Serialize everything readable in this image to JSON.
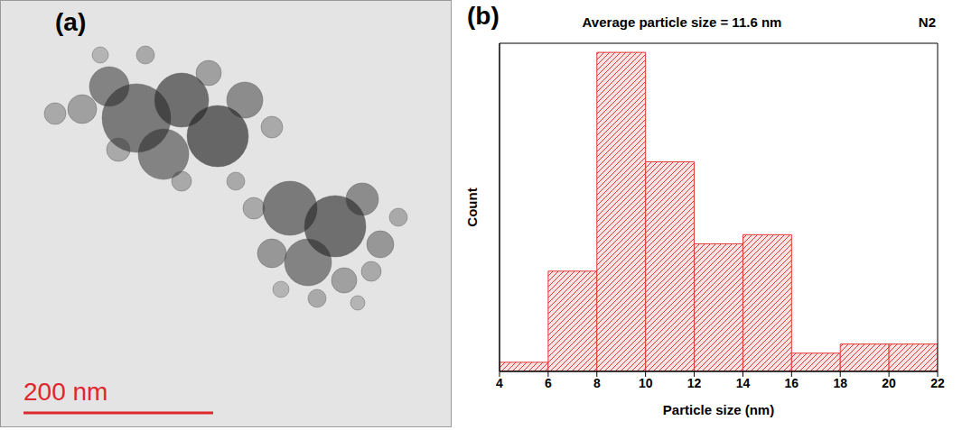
{
  "panel_a": {
    "label": "(a)",
    "scale_bar": "200 nm"
  },
  "chart_data": {
    "type": "histogram",
    "panel_label": "(b)",
    "title": "Average particle size = 11.6 nm",
    "annotations": [
      "N2"
    ],
    "x_label": "Particle size (nm)",
    "y_label": "Count",
    "bins": [
      4,
      6,
      8,
      10,
      12,
      14,
      16,
      18,
      20,
      22
    ],
    "values": [
      1,
      11,
      35,
      23,
      14,
      15,
      2,
      3,
      3
    ],
    "color": "#e53935",
    "xlim": [
      4,
      22
    ],
    "xticks": [
      4,
      6,
      8,
      10,
      12,
      14,
      16,
      18,
      20,
      22
    ],
    "ylim": [
      0,
      36
    ],
    "tick_labels": "x",
    "grid": false
  }
}
